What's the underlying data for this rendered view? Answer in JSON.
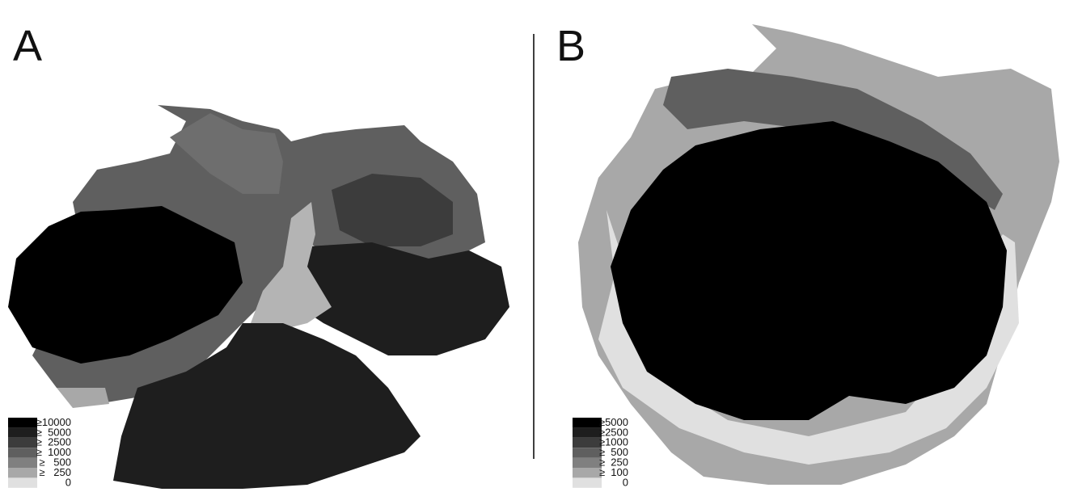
{
  "panels": [
    {
      "label": "A",
      "legend": [
        {
          "label": "≥10000",
          "color": "#000000"
        },
        {
          "label": "≥  5000",
          "color": "#1e1e1e"
        },
        {
          "label": "≥  2500",
          "color": "#3c3c3c"
        },
        {
          "label": "≥  1000",
          "color": "#5f5f5f"
        },
        {
          "label": "≥   500",
          "color": "#808080"
        },
        {
          "label": "≥   250",
          "color": "#a8a8a8"
        },
        {
          "label": "0",
          "color": "#e0e0e0"
        }
      ]
    },
    {
      "label": "B",
      "legend": [
        {
          "label": "≥5000",
          "color": "#000000"
        },
        {
          "label": "≥2500",
          "color": "#1e1e1e"
        },
        {
          "label": "≥1000",
          "color": "#3c3c3c"
        },
        {
          "label": "≥  500",
          "color": "#5f5f5f"
        },
        {
          "label": "≥  250",
          "color": "#808080"
        },
        {
          "label": "≥  100",
          "color": "#a8a8a8"
        },
        {
          "label": "0",
          "color": "#e0e0e0"
        }
      ]
    }
  ]
}
